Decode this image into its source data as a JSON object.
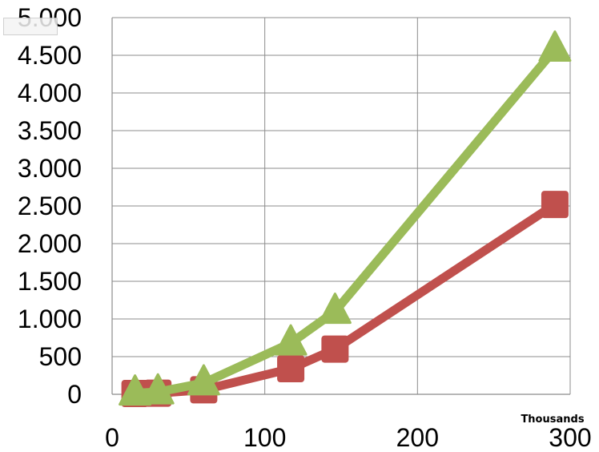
{
  "chart_data": {
    "type": "line",
    "title": "",
    "xlabel": "",
    "ylabel": "",
    "x_unit_label": "Thousands",
    "xlim": [
      0,
      300
    ],
    "ylim": [
      0,
      5000
    ],
    "x_ticks": [
      0,
      100,
      200,
      300
    ],
    "x_tick_labels": [
      "0",
      "100",
      "200",
      "300"
    ],
    "y_ticks": [
      0,
      500,
      1000,
      1500,
      2000,
      2500,
      3000,
      3500,
      4000,
      4500,
      5000
    ],
    "y_tick_labels": [
      "0",
      "500",
      "1.000",
      "1.500",
      "2.000",
      "2.500",
      "3.000",
      "3.500",
      "4.000",
      "4.500",
      "5.000"
    ],
    "grid": true,
    "series": [
      {
        "marker": "square",
        "color": "#c0504d",
        "x": [
          15,
          30,
          60,
          117,
          146,
          290
        ],
        "y": [
          10,
          15,
          60,
          340,
          600,
          2520
        ]
      },
      {
        "marker": "triangle",
        "color": "#9bbb59",
        "x": [
          15,
          30,
          60,
          117,
          146,
          290
        ],
        "y": [
          15,
          30,
          150,
          680,
          1100,
          4580
        ]
      }
    ]
  }
}
